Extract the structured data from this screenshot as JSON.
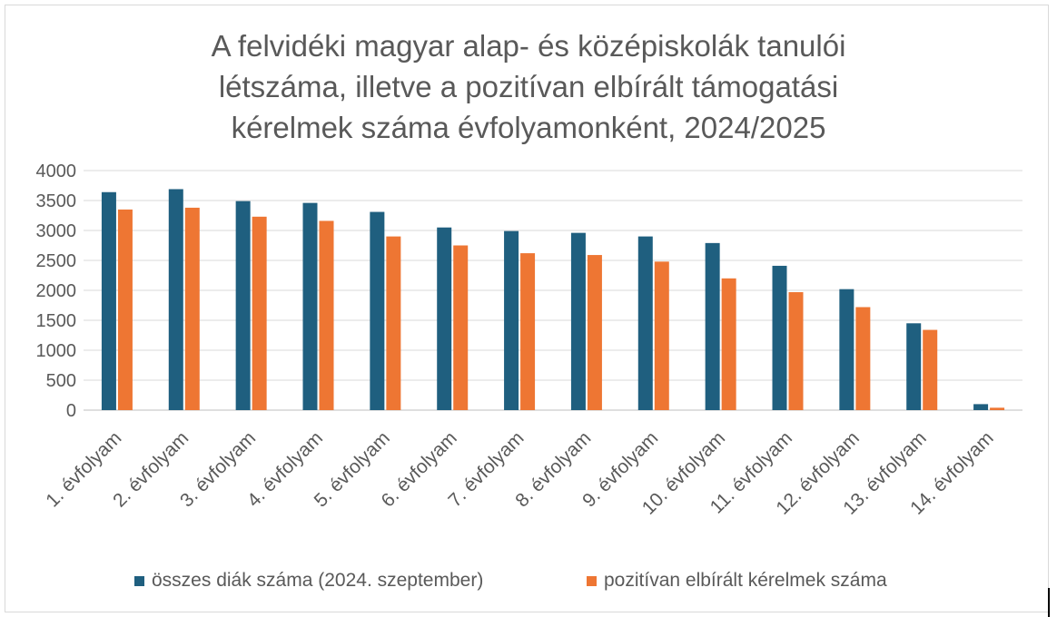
{
  "chart_data": {
    "type": "bar",
    "title_lines": [
      "A felvidéki magyar alap- és középiskolák tanulói",
      "létszáma, illetve a pozitívan elbírált támogatási",
      "kérelmek száma évfolyamonként, 2024/2025"
    ],
    "categories": [
      "1. évfolyam",
      "2. évfolyam",
      "3. évfolyam",
      "4. évfolyam",
      "5. évfolyam",
      "6. évfolyam",
      "7. évfolyam",
      "8. évfolyam",
      "9. évfolyam",
      "10. évfolyam",
      "11. évfolyam",
      "12. évfolyam",
      "13. évfolyam",
      "14. évfolyam"
    ],
    "series": [
      {
        "name": "összes diák száma (2024. szeptember)",
        "color": "#1f5f7f",
        "values": [
          3640,
          3690,
          3490,
          3460,
          3310,
          3050,
          2990,
          2960,
          2900,
          2790,
          2410,
          2020,
          1450,
          100
        ]
      },
      {
        "name": "pozitívan elbírált kérelmek száma",
        "color": "#ee7633",
        "values": [
          3350,
          3380,
          3230,
          3160,
          2900,
          2750,
          2620,
          2590,
          2480,
          2200,
          1970,
          1720,
          1340,
          40
        ]
      }
    ],
    "ylim": [
      0,
      4000
    ],
    "yticks": [
      0,
      500,
      1000,
      1500,
      2000,
      2500,
      3000,
      3500,
      4000
    ],
    "grid": true,
    "legend_position": "bottom"
  }
}
